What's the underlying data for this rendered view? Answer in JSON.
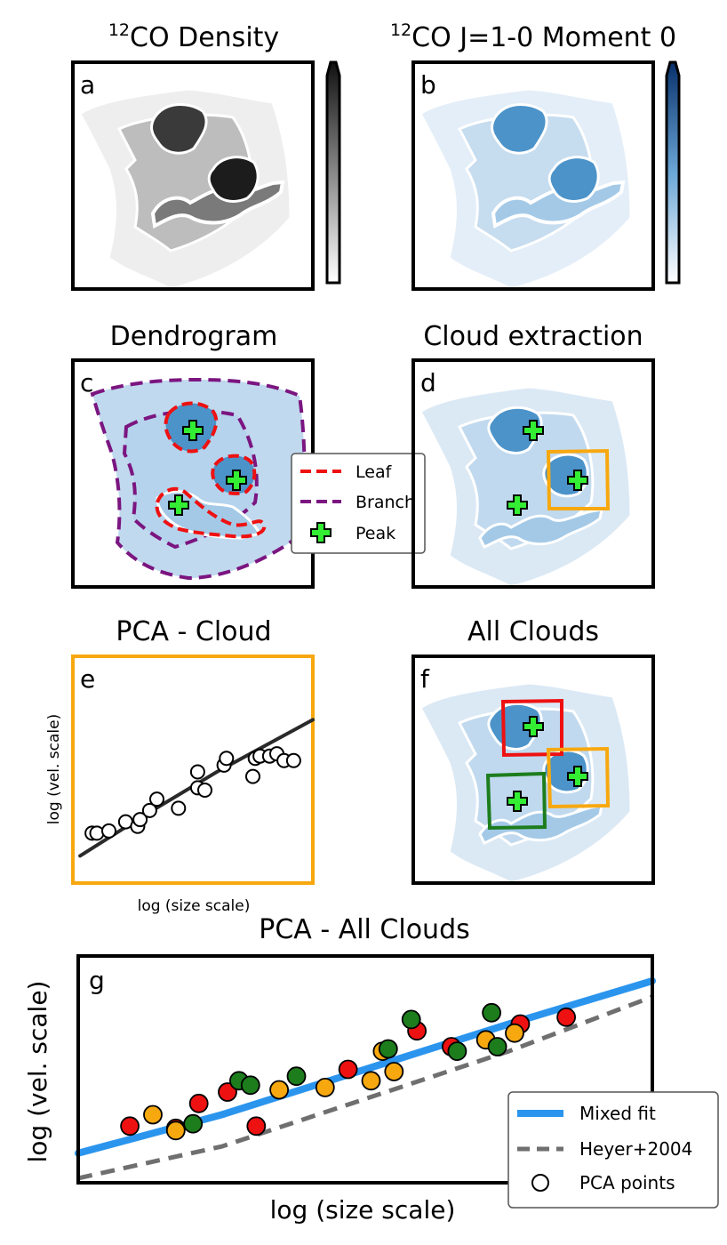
{
  "titles": {
    "a_main": "CO Density",
    "a_sup": "12",
    "b_main": "CO J=1-0 Moment 0",
    "b_sup": "12",
    "c": "Dendrogram",
    "d": "Cloud extraction",
    "e": "PCA - Cloud",
    "f": "All Clouds",
    "g": "PCA - All Clouds"
  },
  "panel_labels": {
    "a": "a",
    "b": "b",
    "c": "c",
    "d": "d",
    "e": "e",
    "f": "f",
    "g": "g"
  },
  "legend_c": {
    "leaf": "Leaf",
    "branch": "Branch",
    "peak": "Peak"
  },
  "legend_g": {
    "mixed": "Mixed fit",
    "heyer": "Heyer+2004",
    "pca": "PCA points"
  },
  "axes": {
    "e_x": "log (size scale)",
    "e_y": "log (vel. scale)",
    "g_x": "log (size scale)",
    "g_y": "log (vel. scale)"
  },
  "colors": {
    "leaf": "#ee1111",
    "branch": "#7b1580",
    "peak": "#33ee33",
    "cloud_orange": "#f7a80f",
    "cloud_red": "#ee1111",
    "cloud_green": "#1d7d1d",
    "mixed_fit": "#2b95ee",
    "heyer": "#6f6f6f",
    "fill_light": "#c0d9ee",
    "fill_mid": "#a3c9e7",
    "fill_dark": "#4b93c9"
  },
  "chart_data": [
    {
      "type": "scatter",
      "panel": "e",
      "title": "PCA - Cloud",
      "xlabel": "log (size scale)",
      "ylabel": "log (vel. scale)",
      "points": [
        [
          0.08,
          0.22
        ],
        [
          0.1,
          0.22
        ],
        [
          0.15,
          0.23
        ],
        [
          0.22,
          0.27
        ],
        [
          0.27,
          0.25
        ],
        [
          0.28,
          0.28
        ],
        [
          0.32,
          0.32
        ],
        [
          0.35,
          0.37
        ],
        [
          0.44,
          0.33
        ],
        [
          0.52,
          0.42
        ],
        [
          0.52,
          0.49
        ],
        [
          0.55,
          0.41
        ],
        [
          0.63,
          0.52
        ],
        [
          0.64,
          0.55
        ],
        [
          0.75,
          0.47
        ],
        [
          0.76,
          0.55
        ],
        [
          0.78,
          0.56
        ],
        [
          0.82,
          0.56
        ],
        [
          0.85,
          0.57
        ],
        [
          0.88,
          0.54
        ],
        [
          0.92,
          0.54
        ]
      ],
      "fit_line": [
        [
          0.03,
          0.12
        ],
        [
          0.3,
          0.3
        ],
        [
          0.6,
          0.49
        ],
        [
          1.0,
          0.72
        ]
      ]
    },
    {
      "type": "scatter",
      "panel": "g",
      "title": "PCA - All Clouds",
      "xlabel": "log (size scale)",
      "ylabel": "log (vel. scale)",
      "series": [
        {
          "name": "red",
          "color": "#ee1111",
          "points": [
            [
              0.09,
              0.25
            ],
            [
              0.17,
              0.24
            ],
            [
              0.21,
              0.35
            ],
            [
              0.26,
              0.4
            ],
            [
              0.31,
              0.25
            ],
            [
              0.47,
              0.5
            ],
            [
              0.59,
              0.67
            ],
            [
              0.65,
              0.6
            ],
            [
              0.77,
              0.7
            ],
            [
              0.85,
              0.73
            ]
          ]
        },
        {
          "name": "orange",
          "color": "#f7a80f",
          "points": [
            [
              0.13,
              0.3
            ],
            [
              0.17,
              0.23
            ],
            [
              0.35,
              0.41
            ],
            [
              0.43,
              0.42
            ],
            [
              0.51,
              0.45
            ],
            [
              0.53,
              0.58
            ],
            [
              0.55,
              0.49
            ],
            [
              0.71,
              0.63
            ],
            [
              0.76,
              0.66
            ]
          ]
        },
        {
          "name": "green",
          "color": "#1d7d1d",
          "points": [
            [
              0.2,
              0.26
            ],
            [
              0.28,
              0.45
            ],
            [
              0.3,
              0.43
            ],
            [
              0.38,
              0.47
            ],
            [
              0.54,
              0.59
            ],
            [
              0.58,
              0.72
            ],
            [
              0.66,
              0.58
            ],
            [
              0.72,
              0.75
            ],
            [
              0.73,
              0.6
            ]
          ]
        }
      ],
      "mixed_fit": [
        [
          0.0,
          0.13
        ],
        [
          0.25,
          0.3
        ],
        [
          0.5,
          0.5
        ],
        [
          0.75,
          0.7
        ],
        [
          1.0,
          0.89
        ]
      ],
      "heyer_2004": [
        [
          0.0,
          0.02
        ],
        [
          0.25,
          0.16
        ],
        [
          0.5,
          0.37
        ],
        [
          0.75,
          0.58
        ],
        [
          1.0,
          0.82
        ]
      ],
      "legend": [
        "Mixed fit",
        "Heyer+2004",
        "PCA points"
      ],
      "legend_position": "bottom-right"
    }
  ]
}
